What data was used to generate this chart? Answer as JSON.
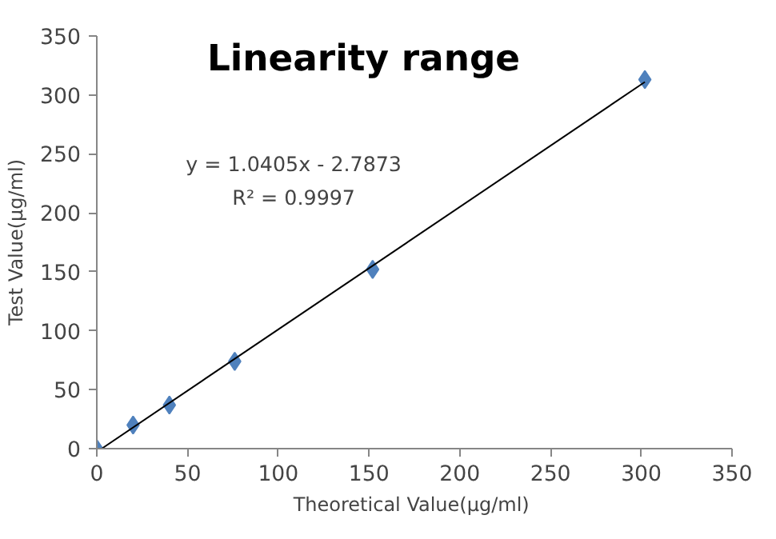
{
  "chart_data": {
    "type": "scatter",
    "title": "Linearity range",
    "xlabel": "Theoretical  Value(μg/ml)",
    "ylabel": "Test Value(μg/ml)",
    "annotations": [
      "y = 1.0405x - 2.7873",
      "R² = 0.9997"
    ],
    "xlim": [
      0,
      350
    ],
    "ylim": [
      0,
      350
    ],
    "xticks": [
      0,
      50,
      100,
      150,
      200,
      250,
      300,
      350
    ],
    "yticks": [
      0,
      50,
      100,
      150,
      200,
      250,
      300,
      350
    ],
    "grid": false,
    "series": [
      {
        "color": "#4f81bd",
        "marker": "diamond",
        "x": [
          0,
          20,
          40,
          76,
          152,
          302
        ],
        "values": [
          0,
          20,
          37,
          74,
          152,
          313
        ]
      },
      {
        "type": "line",
        "color": "#000000",
        "marker": "none",
        "x": [
          2.7,
          302
        ],
        "values": [
          0,
          311
        ]
      }
    ]
  }
}
